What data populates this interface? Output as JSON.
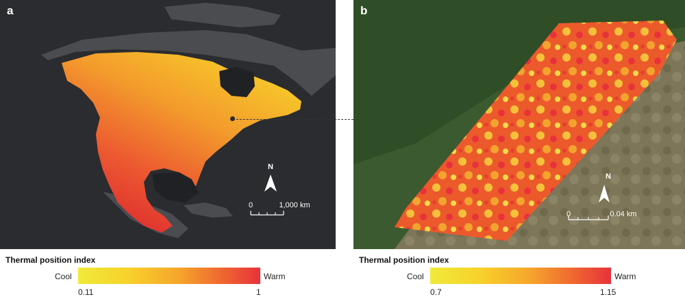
{
  "panel_a": {
    "letter": "a",
    "north_label": "N",
    "scale_start": "0",
    "scale_end": "1,000 km"
  },
  "panel_b": {
    "letter": "b",
    "north_label": "N",
    "scale_start": "0",
    "scale_end": "0.04 km"
  },
  "legend_a": {
    "title": "Thermal position index",
    "low_label": "Cool",
    "high_label": "Warm",
    "min_value": "0.11",
    "max_value": "1"
  },
  "legend_b": {
    "title": "Thermal position index",
    "low_label": "Cool",
    "high_label": "Warm",
    "min_value": "0.7",
    "max_value": "1.15"
  },
  "colors": {
    "cool": "#f0ea3a",
    "warm": "#e8323a",
    "map_background": "#2a2c2f"
  }
}
